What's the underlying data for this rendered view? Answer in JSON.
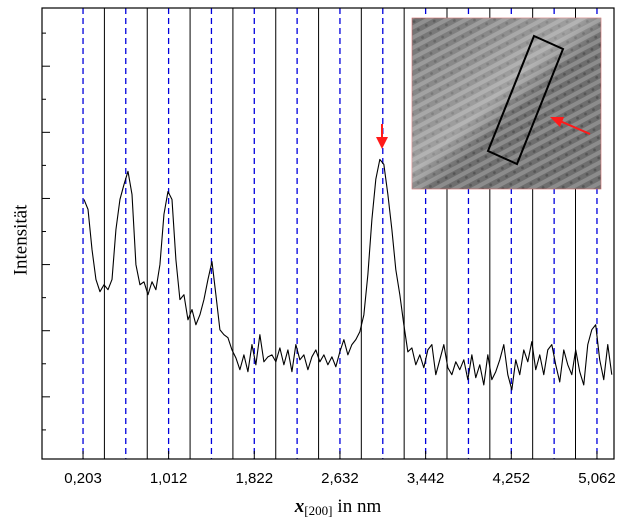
{
  "chart_data": {
    "type": "line",
    "ylabel": "Intensität",
    "xlabel": {
      "symbol": "x",
      "subscript": "[200]",
      "unit": "in nm"
    },
    "color": "#000000",
    "xlim": [
      -0.185,
      5.223
    ],
    "ylim": [
      -0.88,
      12.76
    ],
    "xticks": [
      {
        "value": 0.203,
        "label": "0,203"
      },
      {
        "value": 1.012,
        "label": "1,012"
      },
      {
        "value": 1.822,
        "label": "1,822"
      },
      {
        "value": 2.632,
        "label": "2,632"
      },
      {
        "value": 3.442,
        "label": "3,442"
      },
      {
        "value": 4.252,
        "label": "4,252"
      },
      {
        "value": 5.062,
        "label": "5,062"
      }
    ],
    "yticks": [
      0,
      1,
      2,
      3,
      4,
      5,
      6,
      7,
      8,
      9,
      10,
      11,
      12
    ],
    "dashed_lines": {
      "color": "#0000dd",
      "x": [
        0.203,
        0.607,
        1.012,
        1.417,
        1.822,
        2.227,
        2.632,
        3.037,
        3.442,
        3.847,
        4.252,
        4.657,
        5.062
      ]
    },
    "solid_lines": {
      "color": "#000000",
      "x": [
        0.405,
        0.81,
        1.215,
        1.62,
        2.025,
        2.43,
        2.834,
        3.239,
        3.644,
        4.049,
        4.454,
        4.859
      ]
    },
    "x": [
      0.212,
      0.25,
      0.288,
      0.325,
      0.363,
      0.401,
      0.439,
      0.477,
      0.514,
      0.552,
      0.59,
      0.628,
      0.666,
      0.703,
      0.741,
      0.779,
      0.817,
      0.855,
      0.892,
      0.93,
      0.968,
      1.006,
      1.044,
      1.081,
      1.119,
      1.157,
      1.195,
      1.233,
      1.27,
      1.308,
      1.346,
      1.384,
      1.422,
      1.459,
      1.497,
      1.535,
      1.573,
      1.611,
      1.648,
      1.686,
      1.724,
      1.762,
      1.8,
      1.837,
      1.875,
      1.913,
      1.951,
      1.989,
      2.026,
      2.064,
      2.102,
      2.14,
      2.178,
      2.215,
      2.253,
      2.291,
      2.329,
      2.367,
      2.404,
      2.442,
      2.48,
      2.518,
      2.556,
      2.593,
      2.631,
      2.669,
      2.707,
      2.745,
      2.782,
      2.82,
      2.858,
      2.896,
      2.934,
      2.971,
      3.009,
      3.047,
      3.085,
      3.123,
      3.16,
      3.198,
      3.236,
      3.274,
      3.312,
      3.349,
      3.387,
      3.425,
      3.463,
      3.501,
      3.538,
      3.576,
      3.614,
      3.652,
      3.69,
      3.727,
      3.765,
      3.803,
      3.841,
      3.879,
      3.916,
      3.954,
      3.992,
      4.03,
      4.068,
      4.105,
      4.143,
      4.181,
      4.219,
      4.257,
      4.294,
      4.332,
      4.37,
      4.408,
      4.446,
      4.483,
      4.521,
      4.559,
      4.597,
      4.635,
      4.672,
      4.71,
      4.748,
      4.786,
      4.824,
      4.861,
      4.899,
      4.937,
      4.975,
      5.013,
      5.05,
      5.088,
      5.126,
      5.164,
      5.202
    ],
    "values": [
      6.97,
      6.67,
      5.45,
      4.55,
      4.18,
      4.39,
      4.24,
      4.55,
      6.06,
      6.97,
      7.42,
      7.82,
      7.12,
      5.0,
      4.39,
      4.48,
      4.09,
      4.48,
      4.24,
      5.0,
      6.52,
      7.21,
      6.97,
      5.15,
      3.94,
      4.09,
      3.33,
      3.64,
      3.18,
      3.48,
      3.94,
      4.55,
      5.09,
      4.09,
      3.03,
      2.88,
      2.79,
      2.42,
      2.18,
      1.82,
      2.27,
      1.76,
      2.58,
      1.97,
      2.88,
      2.06,
      2.21,
      2.27,
      2.06,
      2.48,
      1.97,
      2.42,
      1.76,
      2.58,
      2.12,
      2.27,
      1.82,
      2.21,
      2.42,
      2.06,
      2.27,
      1.97,
      2.21,
      1.91,
      2.36,
      2.73,
      2.27,
      2.58,
      2.73,
      2.97,
      3.48,
      4.7,
      6.36,
      7.58,
      8.18,
      8.03,
      7.12,
      6.06,
      4.85,
      4.09,
      3.18,
      2.36,
      2.48,
      1.97,
      2.27,
      1.88,
      2.42,
      2.58,
      1.67,
      2.12,
      2.58,
      1.88,
      1.67,
      2.06,
      1.82,
      2.12,
      1.52,
      2.27,
      1.58,
      1.97,
      1.36,
      2.27,
      1.52,
      1.76,
      2.12,
      2.58,
      1.67,
      1.21,
      2.12,
      1.67,
      2.42,
      2.06,
      2.67,
      1.82,
      2.27,
      1.67,
      2.42,
      2.58,
      1.97,
      1.45,
      2.42,
      1.97,
      1.67,
      2.42,
      1.76,
      1.36,
      2.58,
      3.03,
      3.18,
      2.12,
      1.52,
      2.58,
      1.67
    ]
  }
}
